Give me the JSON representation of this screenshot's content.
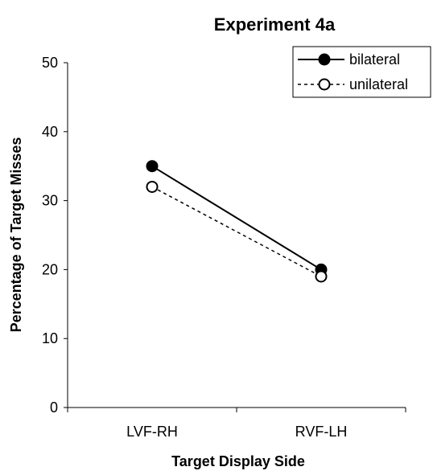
{
  "chart_data": {
    "type": "line",
    "title": "Experiment 4a",
    "xlabel": "Target Display Side",
    "ylabel": "Percentage of Target Misses",
    "categories": [
      "LVF-RH",
      "RVF-LH"
    ],
    "ylim": [
      0,
      50
    ],
    "yticks": [
      0,
      10,
      20,
      30,
      40,
      50
    ],
    "series": [
      {
        "name": "bilateral",
        "values": [
          35,
          20
        ],
        "marker": "filled-circle",
        "line": "solid",
        "color": "#000000"
      },
      {
        "name": "unilateral",
        "values": [
          32,
          19
        ],
        "marker": "open-circle",
        "line": "dashed",
        "color": "#000000"
      }
    ],
    "legend_position": "top-right",
    "grid": false
  }
}
